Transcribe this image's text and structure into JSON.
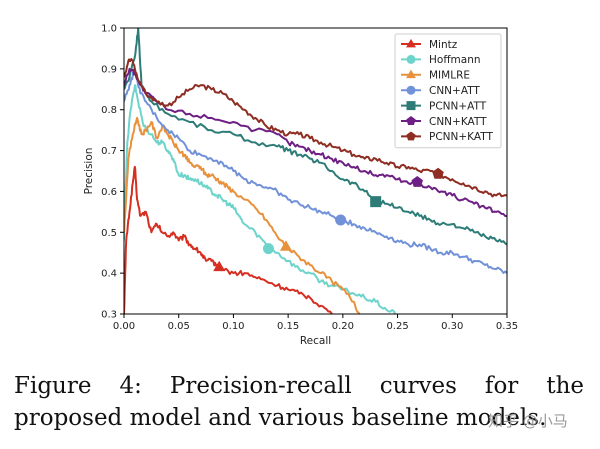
{
  "chart_data": {
    "type": "line",
    "title": "",
    "xlabel": "Recall",
    "ylabel": "Precision",
    "xlim": [
      0.0,
      0.35
    ],
    "ylim": [
      0.3,
      1.0
    ],
    "xticks": [
      "0.00",
      "0.05",
      "0.10",
      "0.15",
      "0.20",
      "0.25",
      "0.30",
      "0.35"
    ],
    "yticks": [
      "0.3",
      "0.4",
      "0.5",
      "0.6",
      "0.7",
      "0.8",
      "0.9",
      "1.0"
    ],
    "legend_position": "top-right",
    "series": [
      {
        "name": "Mintz",
        "color": "#d62f22",
        "marker": "triangle",
        "marker_at": [
          0.087,
          0.415
        ],
        "points": [
          [
            0.0,
            0.3
          ],
          [
            0.002,
            0.48
          ],
          [
            0.005,
            0.55
          ],
          [
            0.008,
            0.62
          ],
          [
            0.01,
            0.66
          ],
          [
            0.012,
            0.58
          ],
          [
            0.015,
            0.54
          ],
          [
            0.02,
            0.55
          ],
          [
            0.025,
            0.5
          ],
          [
            0.03,
            0.52
          ],
          [
            0.035,
            0.5
          ],
          [
            0.04,
            0.49
          ],
          [
            0.045,
            0.5
          ],
          [
            0.05,
            0.48
          ],
          [
            0.055,
            0.49
          ],
          [
            0.06,
            0.47
          ],
          [
            0.065,
            0.46
          ],
          [
            0.07,
            0.45
          ],
          [
            0.075,
            0.43
          ],
          [
            0.08,
            0.43
          ],
          [
            0.085,
            0.42
          ],
          [
            0.09,
            0.41
          ],
          [
            0.1,
            0.4
          ],
          [
            0.11,
            0.4
          ],
          [
            0.12,
            0.39
          ],
          [
            0.13,
            0.38
          ],
          [
            0.14,
            0.37
          ],
          [
            0.15,
            0.36
          ],
          [
            0.16,
            0.35
          ],
          [
            0.17,
            0.34
          ],
          [
            0.18,
            0.32
          ],
          [
            0.19,
            0.3
          ]
        ]
      },
      {
        "name": "Hoffmann",
        "color": "#6ed4cb",
        "marker": "circle",
        "marker_at": [
          0.132,
          0.46
        ],
        "points": [
          [
            0.0,
            0.48
          ],
          [
            0.003,
            0.72
          ],
          [
            0.006,
            0.8
          ],
          [
            0.01,
            0.86
          ],
          [
            0.013,
            0.82
          ],
          [
            0.018,
            0.76
          ],
          [
            0.025,
            0.74
          ],
          [
            0.03,
            0.72
          ],
          [
            0.035,
            0.72
          ],
          [
            0.04,
            0.7
          ],
          [
            0.045,
            0.68
          ],
          [
            0.05,
            0.64
          ],
          [
            0.055,
            0.64
          ],
          [
            0.06,
            0.63
          ],
          [
            0.065,
            0.63
          ],
          [
            0.07,
            0.62
          ],
          [
            0.075,
            0.61
          ],
          [
            0.08,
            0.6
          ],
          [
            0.085,
            0.59
          ],
          [
            0.09,
            0.58
          ],
          [
            0.095,
            0.57
          ],
          [
            0.1,
            0.56
          ],
          [
            0.105,
            0.54
          ],
          [
            0.11,
            0.52
          ],
          [
            0.12,
            0.5
          ],
          [
            0.13,
            0.47
          ],
          [
            0.14,
            0.45
          ],
          [
            0.15,
            0.43
          ],
          [
            0.16,
            0.41
          ],
          [
            0.17,
            0.4
          ],
          [
            0.18,
            0.38
          ],
          [
            0.19,
            0.37
          ],
          [
            0.2,
            0.36
          ],
          [
            0.21,
            0.35
          ],
          [
            0.22,
            0.34
          ],
          [
            0.23,
            0.33
          ],
          [
            0.24,
            0.31
          ],
          [
            0.25,
            0.3
          ]
        ]
      },
      {
        "name": "MIMLRE",
        "color": "#e8913c",
        "marker": "triangle",
        "marker_at": [
          0.148,
          0.465
        ],
        "points": [
          [
            0.0,
            0.5
          ],
          [
            0.004,
            0.68
          ],
          [
            0.008,
            0.74
          ],
          [
            0.012,
            0.78
          ],
          [
            0.016,
            0.74
          ],
          [
            0.02,
            0.75
          ],
          [
            0.025,
            0.77
          ],
          [
            0.03,
            0.73
          ],
          [
            0.035,
            0.76
          ],
          [
            0.04,
            0.74
          ],
          [
            0.045,
            0.72
          ],
          [
            0.05,
            0.7
          ],
          [
            0.055,
            0.69
          ],
          [
            0.06,
            0.67
          ],
          [
            0.065,
            0.66
          ],
          [
            0.07,
            0.66
          ],
          [
            0.075,
            0.64
          ],
          [
            0.08,
            0.64
          ],
          [
            0.085,
            0.63
          ],
          [
            0.09,
            0.62
          ],
          [
            0.095,
            0.61
          ],
          [
            0.1,
            0.6
          ],
          [
            0.11,
            0.58
          ],
          [
            0.12,
            0.56
          ],
          [
            0.13,
            0.53
          ],
          [
            0.14,
            0.49
          ],
          [
            0.15,
            0.46
          ],
          [
            0.16,
            0.44
          ],
          [
            0.17,
            0.42
          ],
          [
            0.18,
            0.4
          ],
          [
            0.19,
            0.38
          ],
          [
            0.2,
            0.36
          ],
          [
            0.21,
            0.33
          ],
          [
            0.215,
            0.3
          ]
        ]
      },
      {
        "name": "CNN+ATT",
        "color": "#7192d8",
        "marker": "circle",
        "marker_at": [
          0.198,
          0.53
        ],
        "points": [
          [
            0.0,
            0.82
          ],
          [
            0.005,
            0.86
          ],
          [
            0.01,
            0.9
          ],
          [
            0.015,
            0.84
          ],
          [
            0.02,
            0.82
          ],
          [
            0.03,
            0.78
          ],
          [
            0.04,
            0.75
          ],
          [
            0.05,
            0.73
          ],
          [
            0.06,
            0.7
          ],
          [
            0.07,
            0.69
          ],
          [
            0.08,
            0.68
          ],
          [
            0.09,
            0.67
          ],
          [
            0.1,
            0.65
          ],
          [
            0.11,
            0.63
          ],
          [
            0.12,
            0.62
          ],
          [
            0.13,
            0.61
          ],
          [
            0.14,
            0.6
          ],
          [
            0.15,
            0.58
          ],
          [
            0.16,
            0.57
          ],
          [
            0.17,
            0.56
          ],
          [
            0.18,
            0.55
          ],
          [
            0.19,
            0.54
          ],
          [
            0.2,
            0.53
          ],
          [
            0.21,
            0.52
          ],
          [
            0.22,
            0.51
          ],
          [
            0.23,
            0.5
          ],
          [
            0.24,
            0.49
          ],
          [
            0.25,
            0.48
          ],
          [
            0.26,
            0.47
          ],
          [
            0.27,
            0.47
          ],
          [
            0.28,
            0.46
          ],
          [
            0.29,
            0.45
          ],
          [
            0.3,
            0.45
          ],
          [
            0.31,
            0.44
          ],
          [
            0.32,
            0.43
          ],
          [
            0.33,
            0.42
          ],
          [
            0.34,
            0.41
          ],
          [
            0.35,
            0.4
          ]
        ]
      },
      {
        "name": "PCNN+ATT",
        "color": "#2e7c78",
        "marker": "square",
        "marker_at": [
          0.23,
          0.575
        ],
        "points": [
          [
            0.0,
            0.85
          ],
          [
            0.005,
            0.88
          ],
          [
            0.01,
            0.93
          ],
          [
            0.013,
            1.0
          ],
          [
            0.016,
            0.86
          ],
          [
            0.025,
            0.82
          ],
          [
            0.04,
            0.79
          ],
          [
            0.06,
            0.77
          ],
          [
            0.08,
            0.75
          ],
          [
            0.1,
            0.74
          ],
          [
            0.12,
            0.72
          ],
          [
            0.14,
            0.71
          ],
          [
            0.15,
            0.7
          ],
          [
            0.16,
            0.69
          ],
          [
            0.17,
            0.68
          ],
          [
            0.18,
            0.67
          ],
          [
            0.19,
            0.65
          ],
          [
            0.2,
            0.63
          ],
          [
            0.21,
            0.62
          ],
          [
            0.22,
            0.6
          ],
          [
            0.23,
            0.58
          ],
          [
            0.24,
            0.57
          ],
          [
            0.25,
            0.56
          ],
          [
            0.26,
            0.55
          ],
          [
            0.27,
            0.54
          ],
          [
            0.28,
            0.53
          ],
          [
            0.29,
            0.52
          ],
          [
            0.3,
            0.52
          ],
          [
            0.31,
            0.51
          ],
          [
            0.32,
            0.5
          ],
          [
            0.33,
            0.49
          ],
          [
            0.34,
            0.48
          ],
          [
            0.35,
            0.47
          ]
        ]
      },
      {
        "name": "CNN+KATT",
        "color": "#6e1f84",
        "marker": "pentagon",
        "marker_at": [
          0.268,
          0.623
        ],
        "points": [
          [
            0.0,
            0.86
          ],
          [
            0.005,
            0.9
          ],
          [
            0.01,
            0.89
          ],
          [
            0.015,
            0.86
          ],
          [
            0.02,
            0.84
          ],
          [
            0.03,
            0.82
          ],
          [
            0.04,
            0.8
          ],
          [
            0.06,
            0.79
          ],
          [
            0.08,
            0.78
          ],
          [
            0.1,
            0.77
          ],
          [
            0.12,
            0.75
          ],
          [
            0.14,
            0.74
          ],
          [
            0.15,
            0.72
          ],
          [
            0.16,
            0.71
          ],
          [
            0.17,
            0.7
          ],
          [
            0.18,
            0.69
          ],
          [
            0.19,
            0.68
          ],
          [
            0.2,
            0.67
          ],
          [
            0.21,
            0.66
          ],
          [
            0.22,
            0.65
          ],
          [
            0.23,
            0.64
          ],
          [
            0.24,
            0.64
          ],
          [
            0.25,
            0.63
          ],
          [
            0.26,
            0.62
          ],
          [
            0.27,
            0.62
          ],
          [
            0.28,
            0.61
          ],
          [
            0.29,
            0.6
          ],
          [
            0.3,
            0.59
          ],
          [
            0.31,
            0.58
          ],
          [
            0.32,
            0.57
          ],
          [
            0.33,
            0.56
          ],
          [
            0.34,
            0.55
          ],
          [
            0.35,
            0.54
          ]
        ]
      },
      {
        "name": "PCNN+KATT",
        "color": "#8e2d21",
        "marker": "pentagon",
        "marker_at": [
          0.287,
          0.643
        ],
        "points": [
          [
            0.0,
            0.88
          ],
          [
            0.004,
            0.92
          ],
          [
            0.008,
            0.92
          ],
          [
            0.012,
            0.88
          ],
          [
            0.02,
            0.84
          ],
          [
            0.03,
            0.82
          ],
          [
            0.04,
            0.81
          ],
          [
            0.05,
            0.83
          ],
          [
            0.06,
            0.85
          ],
          [
            0.07,
            0.86
          ],
          [
            0.08,
            0.85
          ],
          [
            0.09,
            0.84
          ],
          [
            0.1,
            0.82
          ],
          [
            0.11,
            0.8
          ],
          [
            0.12,
            0.78
          ],
          [
            0.13,
            0.76
          ],
          [
            0.14,
            0.75
          ],
          [
            0.15,
            0.74
          ],
          [
            0.16,
            0.74
          ],
          [
            0.17,
            0.73
          ],
          [
            0.18,
            0.72
          ],
          [
            0.19,
            0.71
          ],
          [
            0.2,
            0.7
          ],
          [
            0.21,
            0.69
          ],
          [
            0.22,
            0.68
          ],
          [
            0.23,
            0.68
          ],
          [
            0.24,
            0.67
          ],
          [
            0.25,
            0.66
          ],
          [
            0.26,
            0.66
          ],
          [
            0.27,
            0.65
          ],
          [
            0.28,
            0.65
          ],
          [
            0.29,
            0.64
          ],
          [
            0.3,
            0.63
          ],
          [
            0.31,
            0.62
          ],
          [
            0.32,
            0.61
          ],
          [
            0.33,
            0.6
          ],
          [
            0.34,
            0.59
          ],
          [
            0.35,
            0.59
          ]
        ]
      }
    ]
  },
  "caption": "Figure 4:  Precision-recall curves for the proposed model and various baseline models.",
  "watermark": "知乎 @小马"
}
